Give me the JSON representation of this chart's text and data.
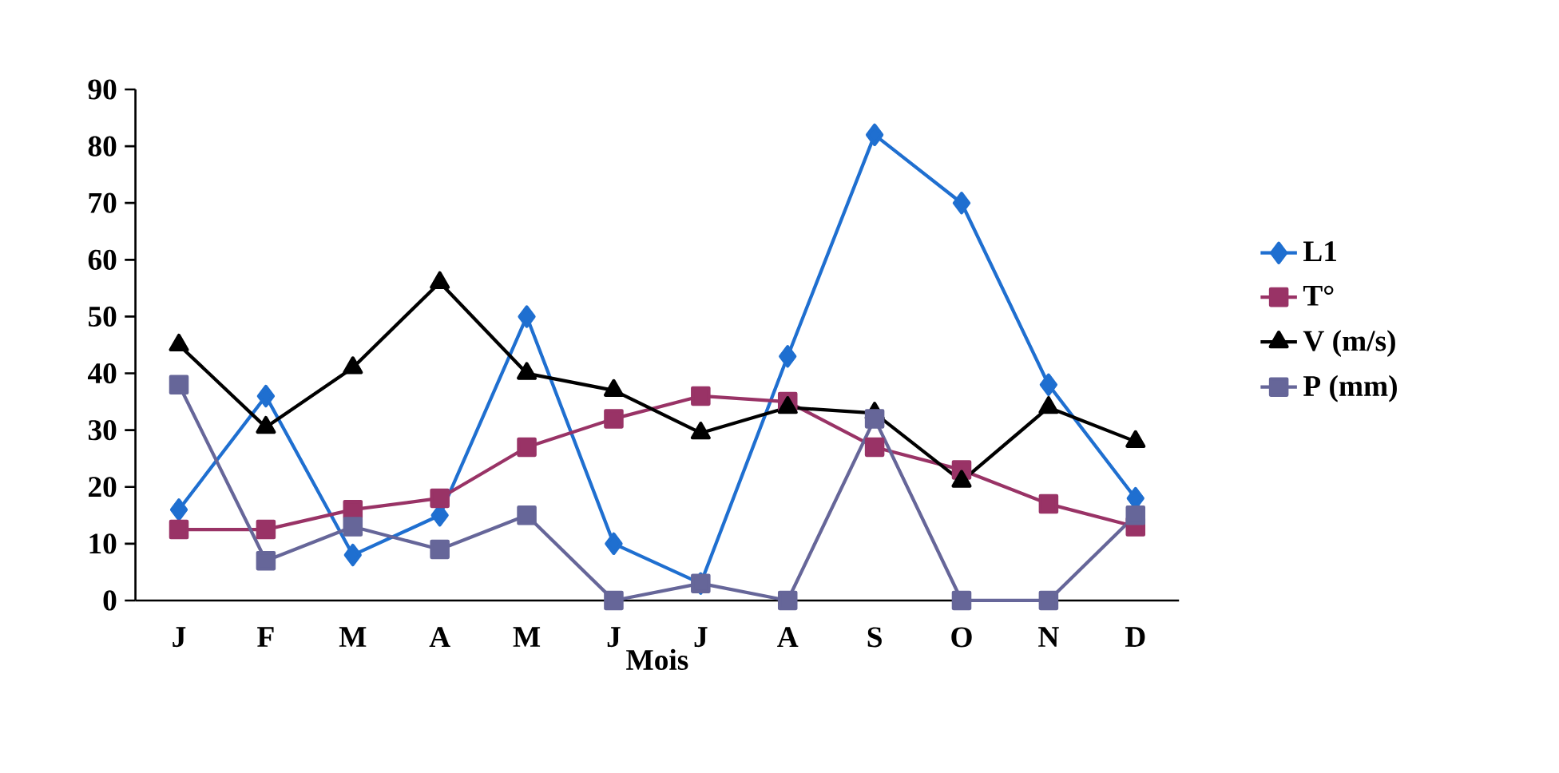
{
  "chart_data": {
    "type": "line",
    "xlabel": "Mois",
    "categories": [
      "J",
      "F",
      "M",
      "A",
      "M",
      "J",
      "J",
      "A",
      "S",
      "O",
      "N",
      "D"
    ],
    "series": [
      {
        "name": "L1",
        "color": "#1f6fd0",
        "marker": "diamond",
        "values": [
          16,
          36,
          8,
          15,
          50,
          10,
          3,
          43,
          82,
          70,
          38,
          18
        ]
      },
      {
        "name": "T°",
        "color": "#993366",
        "marker": "square",
        "values": [
          12.5,
          12.5,
          16,
          18,
          27,
          32,
          36,
          35,
          27,
          23,
          17,
          13
        ]
      },
      {
        "name": "V (m/s)",
        "color": "#000000",
        "marker": "triangle",
        "values": [
          45,
          30.5,
          41,
          56,
          40,
          37,
          29.5,
          34,
          33,
          21,
          34,
          28
        ]
      },
      {
        "name": "P (mm)",
        "color": "#666699",
        "marker": "square",
        "values": [
          38,
          7,
          13,
          9,
          15,
          0,
          3,
          0,
          32,
          0,
          0,
          15
        ]
      }
    ],
    "ylim": [
      0,
      90
    ],
    "yticks": [
      0,
      10,
      20,
      30,
      40,
      50,
      60,
      70,
      80,
      90
    ],
    "grid": false,
    "legend": "right"
  }
}
